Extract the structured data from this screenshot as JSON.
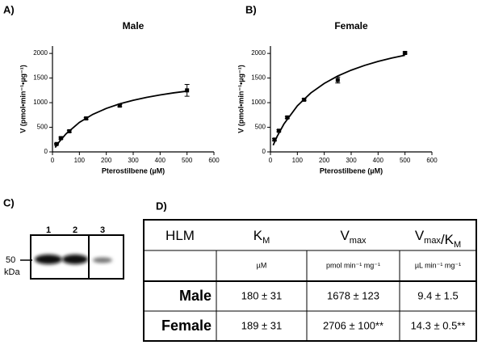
{
  "panel_labels": [
    "A)",
    "B)",
    "C)",
    "D)"
  ],
  "chart_data": [
    {
      "type": "scatter",
      "title": "Male",
      "x_label": "Pterostilbene (µM)",
      "y_label": "V (pmol•min⁻¹•µg⁻¹)",
      "xlim": [
        0,
        600
      ],
      "xticks": [
        0,
        100,
        200,
        300,
        400,
        500,
        600
      ],
      "ylim": [
        0,
        2150
      ],
      "yticks": [
        0,
        500,
        1000,
        1500,
        2000
      ],
      "color": "#000000",
      "points": {
        "x": [
          15,
          31.25,
          62.5,
          125,
          250,
          500
        ],
        "values": [
          160,
          280,
          420,
          680,
          940,
          1250
        ],
        "errors": [
          10,
          20,
          20,
          20,
          20,
          120
        ]
      },
      "fit": {
        "x": [
          10,
          25,
          50,
          100,
          150,
          200,
          250,
          300,
          350,
          400,
          450,
          500
        ],
        "values": [
          88,
          205,
          365,
          599,
          763,
          883,
          976,
          1049,
          1108,
          1157,
          1199,
          1234
        ]
      }
    },
    {
      "type": "scatter",
      "title": "Female",
      "x_label": "Pterostilbene (µM)",
      "y_label": "V (pmol•min⁻¹•µg⁻¹)",
      "xlim": [
        0,
        600
      ],
      "xticks": [
        0,
        100,
        200,
        300,
        400,
        500,
        600
      ],
      "ylim": [
        0,
        2150
      ],
      "yticks": [
        0,
        500,
        1000,
        1500,
        2000
      ],
      "color": "#000000",
      "points": {
        "x": [
          15,
          31.25,
          62.5,
          125,
          250,
          500
        ],
        "values": [
          250,
          430,
          700,
          1060,
          1460,
          2010
        ],
        "errors": [
          20,
          20,
          20,
          20,
          60,
          20
        ]
      },
      "fit": {
        "x": [
          10,
          25,
          50,
          100,
          150,
          200,
          250,
          300,
          350,
          400,
          450,
          500
        ],
        "values": [
          136,
          316,
          566,
          936,
          1197,
          1391,
          1541,
          1660,
          1757,
          1838,
          1906,
          1964
        ]
      }
    }
  ],
  "blot": {
    "lanes": [
      "1",
      "2",
      "3"
    ],
    "marker": "50",
    "marker_unit": "kDa"
  },
  "table": {
    "header": [
      [
        [
          "HLM",
          ""
        ]
      ],
      [
        [
          "K",
          "M"
        ]
      ],
      [
        [
          "V",
          "max"
        ]
      ],
      [
        [
          "V",
          "max"
        ],
        [
          "/K",
          "M"
        ]
      ]
    ],
    "units": [
      "µM",
      "pmol min⁻¹ mg⁻¹",
      "µL min⁻¹ mg⁻¹"
    ],
    "rows": [
      [
        "Male",
        "180 ± 31",
        "1678 ± 123",
        "9.4 ± 1.5"
      ],
      [
        "Female",
        "189 ± 31",
        "2706 ± 100**",
        "14.3 ± 0.5**"
      ]
    ]
  }
}
